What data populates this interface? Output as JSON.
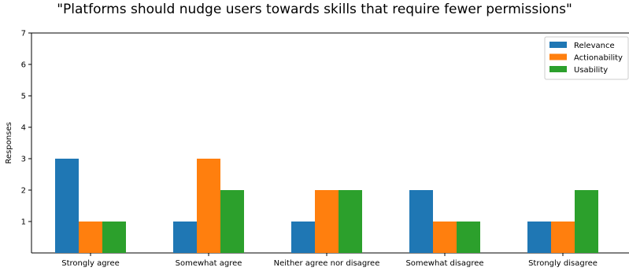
{
  "chart_data": {
    "type": "bar",
    "title": "\"Platforms should nudge users towards skills that require fewer permissions\"",
    "xlabel": "",
    "ylabel": "Responses",
    "ylim": [
      0,
      7
    ],
    "yticks": [
      1,
      2,
      3,
      4,
      5,
      6,
      7
    ],
    "categories": [
      "Strongly agree",
      "Somewhat agree",
      "Neither agree nor disagree",
      "Somewhat disagree",
      "Strongly disagree"
    ],
    "series": [
      {
        "name": "Relevance",
        "color": "#1f77b4",
        "values": [
          3,
          1,
          1,
          2,
          1
        ]
      },
      {
        "name": "Actionability",
        "color": "#ff7f0e",
        "values": [
          1,
          3,
          2,
          1,
          1
        ]
      },
      {
        "name": "Usability",
        "color": "#2ca02c",
        "values": [
          1,
          2,
          2,
          1,
          2
        ]
      }
    ],
    "legend_position": "top-right",
    "grid": false
  }
}
